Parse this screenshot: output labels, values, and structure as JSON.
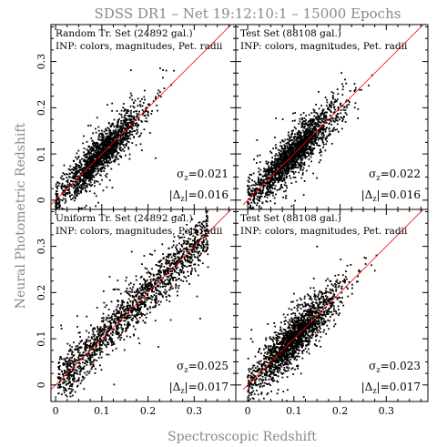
{
  "chart_data": {
    "type": "scatter",
    "title": "SDSS DR1  –  Net 19:12:10:1  –  15000 Epochs",
    "xlabel": "Spectroscopic Redshift",
    "ylabel": "Neural Photometric Redshift",
    "xlim": [
      -0.01,
      0.39
    ],
    "ylim": [
      -0.02,
      0.38
    ],
    "xticks": [
      0,
      0.1,
      0.2,
      0.3
    ],
    "yticks": [
      0,
      0.1,
      0.2,
      0.3
    ],
    "xtick_labels": [
      "0",
      "0.1",
      "0.2",
      "0.3"
    ],
    "ytick_labels": [
      "0",
      "0.1",
      "0.2",
      "0.3"
    ],
    "reference_line_color": "#ff0000",
    "point_color": "#000000",
    "panels": [
      {
        "label": "Random Tr. Set (24892 gal.)",
        "inputs": "INP: colors, magnitudes, Pet. radii",
        "sigma_label": "σ",
        "sigma_sub": "z",
        "sigma_value": "=0.021",
        "delta_label": "|Δ",
        "delta_sub": "z",
        "delta_value": "|=0.016",
        "sample": {
          "center": 0.1,
          "spread": 0.045,
          "xmax": 0.26,
          "scatter": 0.021,
          "count": 1700
        }
      },
      {
        "label": "Test Set (88108 gal.)",
        "inputs": "INP: colors, magnitudes, Pet. radii",
        "sigma_label": "σ",
        "sigma_sub": "z",
        "sigma_value": "=0.022",
        "delta_label": "|Δ",
        "delta_sub": "z",
        "delta_value": "|=0.016",
        "sample": {
          "center": 0.1,
          "spread": 0.045,
          "xmax": 0.27,
          "scatter": 0.022,
          "count": 1900
        }
      },
      {
        "label": "Uniform Tr. Set (24892 gal.)",
        "inputs": "INP: colors, magnitudes, Pet. radii",
        "sigma_label": "σ",
        "sigma_sub": "z",
        "sigma_value": "=0.025",
        "delta_label": "|Δ",
        "delta_sub": "z",
        "delta_value": "|=0.017",
        "sample": {
          "center": 0.15,
          "spread": 0.09,
          "xmax": 0.33,
          "scatter": 0.025,
          "count": 1700
        }
      },
      {
        "label": "Test Set (88108 gal.)",
        "inputs": "INP: colors, magnitudes, Pet. radii",
        "sigma_label": "σ",
        "sigma_sub": "z",
        "sigma_value": "=0.023",
        "delta_label": "|Δ",
        "delta_sub": "z",
        "delta_value": "|=0.017",
        "sample": {
          "center": 0.1,
          "spread": 0.045,
          "xmax": 0.28,
          "scatter": 0.023,
          "count": 1900
        }
      }
    ]
  }
}
